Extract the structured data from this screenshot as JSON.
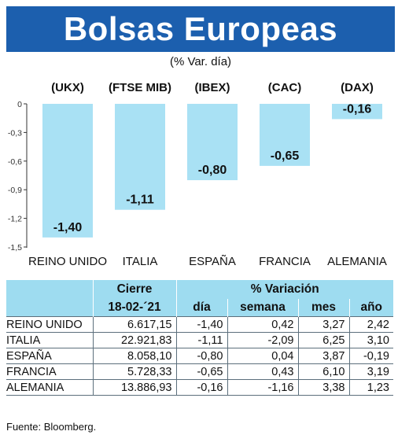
{
  "header": {
    "title": "Bolsas Europeas",
    "subtitle": "(% Var. día)"
  },
  "chart_data": {
    "type": "bar",
    "categories": [
      "REINO UNIDO",
      "ITALIA",
      "ESPAÑA",
      "FRANCIA",
      "ALEMANIA"
    ],
    "tickers": [
      "(UKX)",
      "(FTSE MIB)",
      "(IBEX)",
      "(CAC)",
      "(DAX)"
    ],
    "values": [
      -1.4,
      -1.11,
      -0.8,
      -0.65,
      -0.16
    ],
    "value_labels": [
      "-1,40",
      "-1,11",
      "-0,80",
      "-0,65",
      "-0,16"
    ],
    "ylim": [
      -1.5,
      0
    ],
    "yticks": [
      0,
      -0.3,
      -0.6,
      -0.9,
      -1.2,
      -1.5
    ],
    "ytick_labels": [
      "0",
      "-0,3",
      "-0,6",
      "-0,9",
      "-1,2",
      "-1,5"
    ],
    "bar_color": "#a9e1f4",
    "grid": false
  },
  "table": {
    "header_top": [
      "Cierre",
      "% Variación"
    ],
    "header_sub": [
      "18-02-´21",
      "día",
      "semana",
      "mes",
      "año"
    ],
    "rows": [
      {
        "name": "REINO UNIDO",
        "cierre": "6.617,15",
        "dia": "-1,40",
        "semana": "0,42",
        "mes": "3,27",
        "ano": "2,42"
      },
      {
        "name": "ITALIA",
        "cierre": "22.921,83",
        "dia": "-1,11",
        "semana": "-2,09",
        "mes": "6,25",
        "ano": "3,10"
      },
      {
        "name": "ESPAÑA",
        "cierre": "8.058,10",
        "dia": "-0,80",
        "semana": "0,04",
        "mes": "3,87",
        "ano": "-0,19"
      },
      {
        "name": "FRANCIA",
        "cierre": "5.728,33",
        "dia": "-0,65",
        "semana": "0,43",
        "mes": "6,10",
        "ano": "3,19"
      },
      {
        "name": "ALEMANIA",
        "cierre": "13.886,93",
        "dia": "-0,16",
        "semana": "-1,16",
        "mes": "3,38",
        "ano": "1,23"
      }
    ]
  },
  "footer": {
    "source": "Fuente: Bloomberg."
  },
  "colors": {
    "title_bg": "#1c5fae",
    "table_header_bg": "#9edcf0"
  }
}
